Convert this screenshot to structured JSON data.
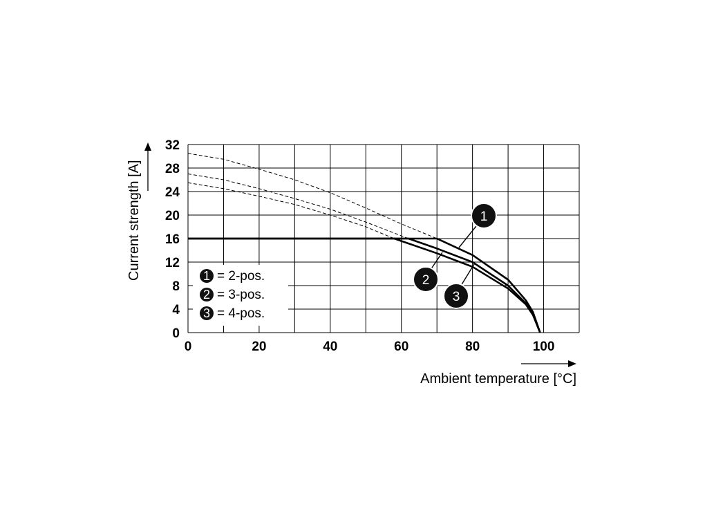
{
  "chart_data": {
    "type": "line",
    "xlabel": "Ambient temperature [°C]",
    "ylabel": "Current strength [A]",
    "xlim": [
      0,
      110
    ],
    "ylim": [
      0,
      32
    ],
    "x_ticks": [
      "0",
      "20",
      "40",
      "60",
      "80",
      "100"
    ],
    "y_ticks": [
      "0",
      "4",
      "8",
      "12",
      "16",
      "20",
      "24",
      "28",
      "32"
    ],
    "grid": true,
    "legend_position": "bottom-left",
    "rated_current_limit": 16,
    "series": [
      {
        "name": "2-pos.",
        "marker": "1",
        "theoretical_curve": [
          [
            0,
            30.5
          ],
          [
            10,
            29.5
          ],
          [
            20,
            27.8
          ],
          [
            30,
            26.0
          ],
          [
            40,
            23.8
          ],
          [
            50,
            21.2
          ],
          [
            60,
            18.5
          ],
          [
            70,
            16.0
          ],
          [
            80,
            13.2
          ],
          [
            90,
            9.0
          ],
          [
            95,
            5.5
          ],
          [
            97,
            3.5
          ],
          [
            99,
            0
          ]
        ],
        "derated_curve": [
          [
            0,
            16
          ],
          [
            70,
            16
          ],
          [
            80,
            13.2
          ],
          [
            90,
            9.0
          ],
          [
            95,
            5.5
          ],
          [
            97,
            3.5
          ],
          [
            99,
            0
          ]
        ]
      },
      {
        "name": "3-pos.",
        "marker": "2",
        "theoretical_curve": [
          [
            0,
            27.0
          ],
          [
            10,
            26.0
          ],
          [
            20,
            24.5
          ],
          [
            30,
            22.8
          ],
          [
            40,
            21.0
          ],
          [
            50,
            18.8
          ],
          [
            62,
            16.0
          ],
          [
            70,
            14.3
          ],
          [
            80,
            12.0
          ],
          [
            90,
            8.0
          ],
          [
            95,
            5.0
          ],
          [
            97,
            3.2
          ],
          [
            99,
            0
          ]
        ],
        "derated_curve": [
          [
            0,
            16
          ],
          [
            62,
            16
          ],
          [
            70,
            14.3
          ],
          [
            80,
            12.0
          ],
          [
            90,
            8.0
          ],
          [
            95,
            5.0
          ],
          [
            97,
            3.2
          ],
          [
            99,
            0
          ]
        ]
      },
      {
        "name": "4-pos.",
        "marker": "3",
        "theoretical_curve": [
          [
            0,
            25.5
          ],
          [
            10,
            24.5
          ],
          [
            20,
            23.2
          ],
          [
            30,
            21.8
          ],
          [
            40,
            20.0
          ],
          [
            50,
            18.0
          ],
          [
            58,
            16.0
          ],
          [
            70,
            13.5
          ],
          [
            80,
            11.2
          ],
          [
            90,
            7.5
          ],
          [
            95,
            4.8
          ],
          [
            97,
            3.0
          ],
          [
            99,
            0
          ]
        ],
        "derated_curve": [
          [
            0,
            16
          ],
          [
            58,
            16
          ],
          [
            70,
            13.5
          ],
          [
            80,
            11.2
          ],
          [
            90,
            7.5
          ],
          [
            95,
            4.8
          ],
          [
            97,
            3.0
          ],
          [
            99,
            0
          ]
        ]
      }
    ],
    "legend": [
      {
        "marker": "1",
        "label": "= 2-pos."
      },
      {
        "marker": "2",
        "label": "= 3-pos."
      },
      {
        "marker": "3",
        "label": "= 4-pos."
      }
    ]
  }
}
